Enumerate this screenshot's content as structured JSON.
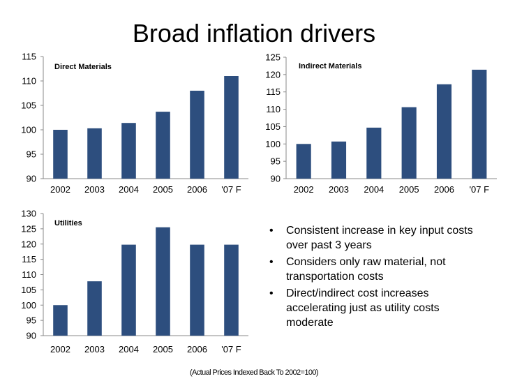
{
  "slide": {
    "title": "Broad inflation drivers",
    "footnote": "(Actual Prices Indexed Back To 2002=100)"
  },
  "bullets": [
    "Consistent increase in key input costs over past 3 years",
    "Considers only raw material, not transportation costs",
    "Direct/indirect cost increases accelerating just as utility costs moderate"
  ],
  "colors": {
    "bar": "#2d4e7e"
  },
  "chart_data": [
    {
      "type": "bar",
      "title": "Direct Materials",
      "categories": [
        "2002",
        "2003",
        "2004",
        "2005",
        "2006",
        "'07 F"
      ],
      "values": [
        100,
        100.3,
        101.4,
        103.7,
        108,
        111
      ],
      "ylim": [
        90,
        115
      ],
      "yticks": [
        90,
        95,
        100,
        105,
        110,
        115
      ],
      "grid": false
    },
    {
      "type": "bar",
      "title": "Indirect Materials",
      "categories": [
        "2002",
        "2003",
        "2004",
        "2005",
        "2006",
        "'07 F"
      ],
      "values": [
        100,
        100.7,
        104.7,
        110.6,
        117.2,
        121.4
      ],
      "ylim": [
        90,
        125
      ],
      "yticks": [
        90,
        95,
        100,
        105,
        110,
        115,
        120,
        125
      ],
      "grid": false
    },
    {
      "type": "bar",
      "title": "Utilities",
      "categories": [
        "2002",
        "2003",
        "2004",
        "2005",
        "2006",
        "'07 F"
      ],
      "values": [
        100,
        107.8,
        119.8,
        125.5,
        119.8,
        119.8
      ],
      "ylim": [
        90,
        130
      ],
      "yticks": [
        90,
        95,
        100,
        105,
        110,
        115,
        120,
        125,
        130
      ],
      "grid": false
    }
  ]
}
